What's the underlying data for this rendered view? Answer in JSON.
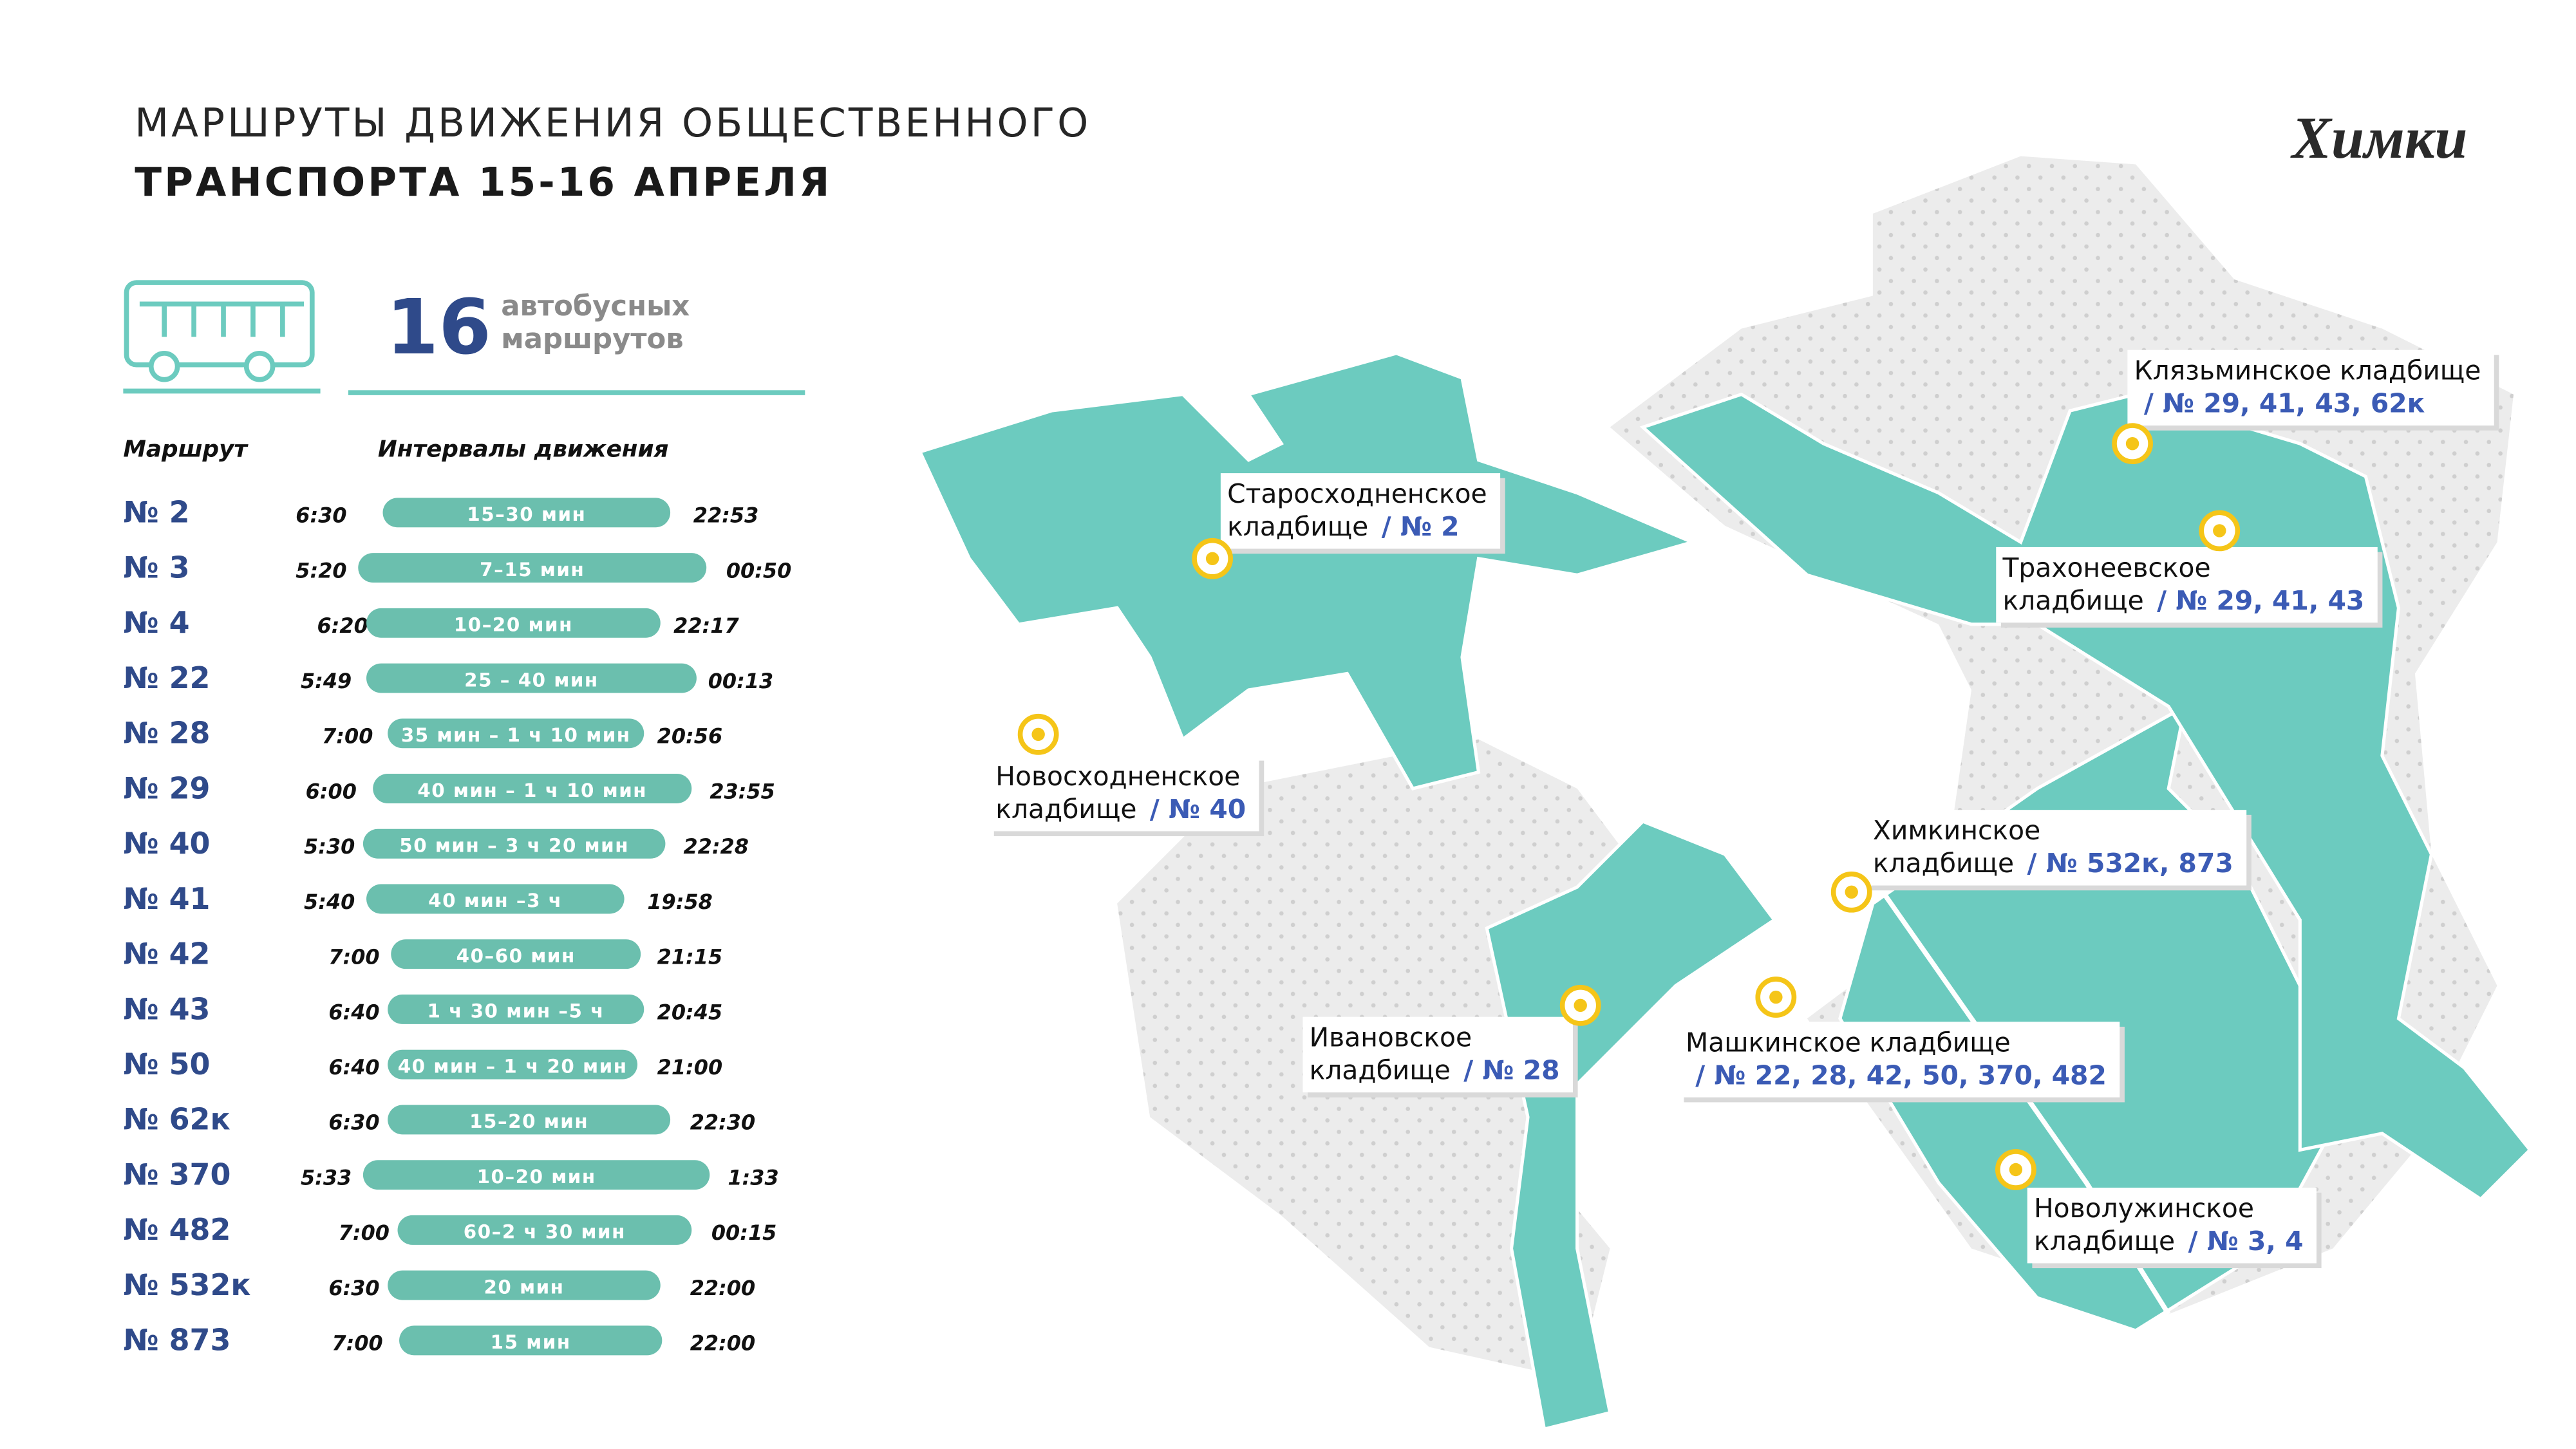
{
  "header": {
    "title_line_1": "МАРШРУТЫ ДВИЖЕНИЯ ОБЩЕСТВЕННОГО",
    "title_line_2": "ТРАНСПОРТА 15-16 АПРЕЛЯ",
    "logo": "Химки"
  },
  "stat": {
    "number": "16",
    "text_line_1": "автобусных",
    "text_line_2": "маршрутов"
  },
  "table": {
    "headers": [
      "Маршрут",
      "Интервалы движения"
    ],
    "rows": [
      [
        "№ 2",
        "6:30",
        "15–30 мин",
        "22:53"
      ],
      [
        "№ 3",
        "5:20",
        "7–15 мин",
        "00:50"
      ],
      [
        "№ 4",
        "6:20",
        "10–20 мин",
        "22:17"
      ],
      [
        "№ 22",
        "5:49",
        "25 – 40 мин",
        "00:13"
      ],
      [
        "№ 28",
        "7:00",
        "35 мин – 1 ч 10 мин",
        "20:56"
      ],
      [
        "№ 29",
        "6:00",
        "40 мин – 1 ч 10 мин",
        "23:55"
      ],
      [
        "№ 40",
        "5:30",
        "50 мин – 3 ч 20 мин",
        "22:28"
      ],
      [
        "№ 41",
        "5:40",
        "40 мин –3 ч",
        "19:58"
      ],
      [
        "№ 42",
        "7:00",
        "40–60 мин",
        "21:15"
      ],
      [
        "№ 43",
        "6:40",
        "1 ч 30 мин –5 ч",
        "20:45"
      ],
      [
        "№ 50",
        "6:40",
        "40 мин – 1 ч 20 мин",
        "21:00"
      ],
      [
        "№ 62к",
        "6:30",
        "15–20 мин",
        "22:30"
      ],
      [
        "№ 370",
        "5:33",
        "10–20 мин",
        "1:33"
      ],
      [
        "№ 482",
        "7:00",
        "60–2 ч 30 мин",
        "00:15"
      ],
      [
        "№ 532к",
        "6:30",
        "20 мин",
        "22:00"
      ],
      [
        "№ 873",
        "7:00",
        "15 мин",
        "22:00"
      ]
    ]
  },
  "places": [
    {
      "name_lines": [
        "Старосходненское",
        "кладбище"
      ],
      "routes": "/ № 2"
    },
    {
      "name_lines": [
        "Новосходненское",
        "кладбище"
      ],
      "routes": "/ № 40"
    },
    {
      "name_lines": [
        "Клязьминское кладбище"
      ],
      "routes": "/ № 29, 41, 43, 62к"
    },
    {
      "name_lines": [
        "Трахонеевское",
        "кладбище"
      ],
      "routes": "/ № 29, 41, 43"
    },
    {
      "name_lines": [
        "Химкинское",
        "кладбище"
      ],
      "routes": "/ № 532к, 873"
    },
    {
      "name_lines": [
        "Ивановское",
        "кладбище"
      ],
      "routes": "/ № 28"
    },
    {
      "name_lines": [
        "Машкинское кладбище"
      ],
      "routes": "/ № 22, 28, 42, 50, 370, 482"
    },
    {
      "name_lines": [
        "Новолужинское",
        "кладбище"
      ],
      "routes": "/ № 3, 4"
    }
  ]
}
